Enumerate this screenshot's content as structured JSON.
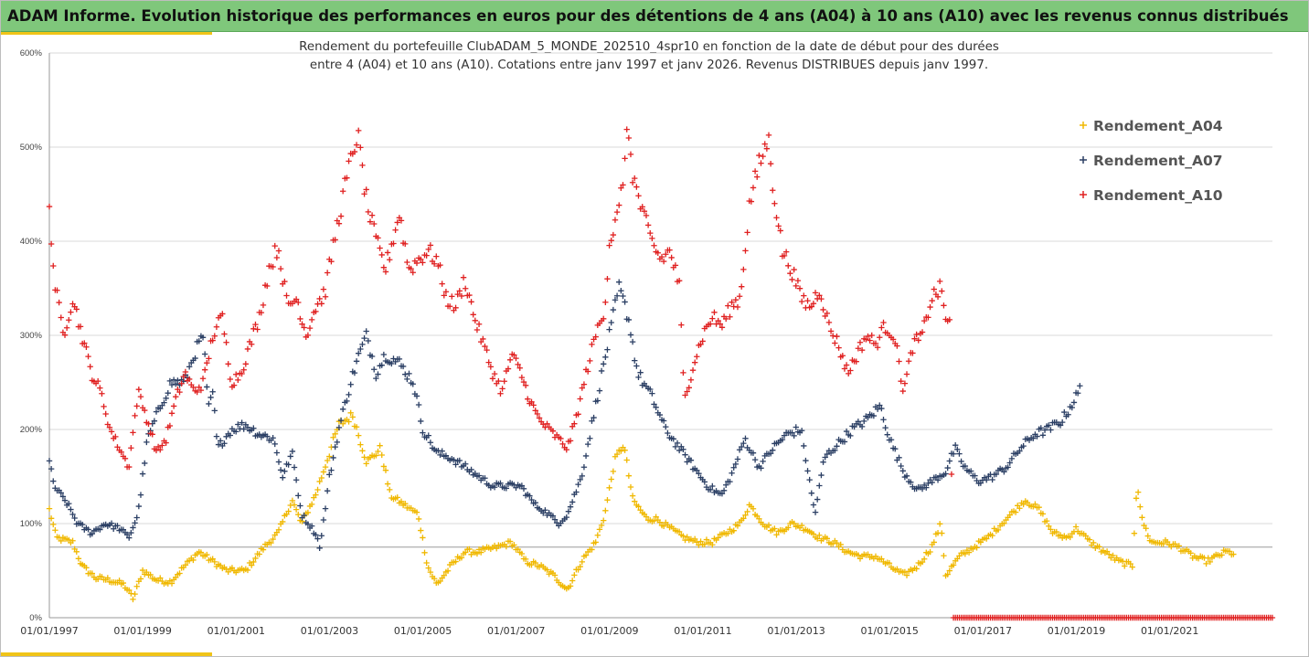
{
  "header": {
    "title": "ADAM Informe. Evolution historique des performances en euros pour des détentions de 4 ans (A04) à 10 ans (A10) avec les revenus connus distribués",
    "accent": "#f0c418"
  },
  "chart_data": {
    "type": "scatter",
    "title": "",
    "subtitle_lines": [
      "Rendement du portefeuille ClubADAM_5_MONDE_202510_4spr10  en fonction de la date de début pour des durées",
      "entre 4 (A04) et 10 ans (A10). Cotations entre janv 1997 et janv 2026. Revenus DISTRIBUES depuis janv 1997."
    ],
    "marker": "+",
    "xlabel": "",
    "ylabel": "",
    "xlim": [
      1997.0,
      2023.2
    ],
    "ylim": [
      0,
      600
    ],
    "y_ticks": [
      0,
      100,
      200,
      300,
      400,
      500,
      600
    ],
    "y_tick_labels": [
      "0%",
      "100%",
      "200%",
      "300%",
      "400%",
      "500%",
      "600%"
    ],
    "x_ticks": [
      1997,
      1999,
      2001,
      2003,
      2005,
      2007,
      2009,
      2011,
      2013,
      2015,
      2017,
      2019,
      2021
    ],
    "x_tick_labels": [
      "01/01/1997",
      "01/01/1999",
      "01/01/2001",
      "01/01/2003",
      "01/01/2005",
      "01/01/2007",
      "01/01/2009",
      "01/01/2011",
      "01/01/2013",
      "01/01/2015",
      "01/01/2017",
      "01/01/2019",
      "01/01/2021"
    ],
    "reference_line": 75,
    "grid": "horizontal",
    "legend_position": "right",
    "series": [
      {
        "name": "Rendement_A04",
        "color": "#f0b800",
        "x_step": 0.0833,
        "points": [
          [
            1997.0,
            115
          ],
          [
            1997.15,
            85
          ],
          [
            1997.5,
            80
          ],
          [
            1997.7,
            55
          ],
          [
            1998.0,
            42
          ],
          [
            1998.3,
            40
          ],
          [
            1998.6,
            35
          ],
          [
            1998.8,
            20
          ],
          [
            1999.0,
            50
          ],
          [
            1999.3,
            40
          ],
          [
            1999.6,
            38
          ],
          [
            1999.9,
            55
          ],
          [
            2000.2,
            70
          ],
          [
            2000.5,
            60
          ],
          [
            2000.8,
            50
          ],
          [
            2001.2,
            50
          ],
          [
            2001.6,
            75
          ],
          [
            2001.9,
            90
          ],
          [
            2002.2,
            125
          ],
          [
            2002.4,
            100
          ],
          [
            2002.7,
            130
          ],
          [
            2003.0,
            175
          ],
          [
            2003.2,
            205
          ],
          [
            2003.5,
            215
          ],
          [
            2003.8,
            165
          ],
          [
            2004.1,
            180
          ],
          [
            2004.3,
            130
          ],
          [
            2004.6,
            120
          ],
          [
            2004.9,
            110
          ],
          [
            2005.1,
            55
          ],
          [
            2005.3,
            35
          ],
          [
            2005.6,
            55
          ],
          [
            2005.9,
            70
          ],
          [
            2006.2,
            70
          ],
          [
            2006.6,
            75
          ],
          [
            2006.9,
            80
          ],
          [
            2007.2,
            60
          ],
          [
            2007.5,
            55
          ],
          [
            2007.8,
            45
          ],
          [
            2008.1,
            30
          ],
          [
            2008.4,
            60
          ],
          [
            2008.7,
            80
          ],
          [
            2008.9,
            110
          ],
          [
            2009.1,
            165
          ],
          [
            2009.3,
            185
          ],
          [
            2009.5,
            125
          ],
          [
            2009.8,
            105
          ],
          [
            2010.0,
            105
          ],
          [
            2010.3,
            95
          ],
          [
            2010.6,
            85
          ],
          [
            2010.9,
            80
          ],
          [
            2011.2,
            80
          ],
          [
            2011.5,
            90
          ],
          [
            2011.8,
            100
          ],
          [
            2012.0,
            120
          ],
          [
            2012.3,
            100
          ],
          [
            2012.6,
            90
          ],
          [
            2012.9,
            100
          ],
          [
            2013.2,
            95
          ],
          [
            2013.5,
            85
          ],
          [
            2013.8,
            80
          ],
          [
            2014.1,
            70
          ],
          [
            2014.4,
            65
          ],
          [
            2014.7,
            65
          ],
          [
            2015.0,
            55
          ],
          [
            2015.3,
            45
          ],
          [
            2015.6,
            55
          ],
          [
            2015.9,
            75
          ],
          [
            2016.1,
            100
          ],
          [
            2016.2,
            45
          ],
          [
            2016.5,
            65
          ],
          [
            2016.8,
            75
          ],
          [
            2017.1,
            85
          ],
          [
            2017.4,
            100
          ],
          [
            2017.7,
            115
          ],
          [
            2017.9,
            125
          ],
          [
            2018.2,
            115
          ],
          [
            2018.5,
            90
          ],
          [
            2018.8,
            85
          ],
          [
            2019.0,
            95
          ],
          [
            2019.3,
            80
          ],
          [
            2019.6,
            70
          ],
          [
            2019.9,
            60
          ],
          [
            2020.2,
            55
          ],
          [
            2020.3,
            145
          ],
          [
            2020.4,
            105
          ],
          [
            2020.6,
            80
          ],
          [
            2020.9,
            80
          ],
          [
            2021.2,
            75
          ],
          [
            2021.5,
            65
          ],
          [
            2021.8,
            60
          ],
          [
            2022.2,
            70
          ],
          [
            2022.4,
            68
          ]
        ]
      },
      {
        "name": "Rendement_A07",
        "color": "#2b3f64",
        "x_step": 0.0833,
        "points": [
          [
            1997.0,
            165
          ],
          [
            1997.1,
            140
          ],
          [
            1997.4,
            120
          ],
          [
            1997.6,
            100
          ],
          [
            1997.9,
            90
          ],
          [
            1998.2,
            100
          ],
          [
            1998.5,
            95
          ],
          [
            1998.7,
            85
          ],
          [
            1998.9,
            110
          ],
          [
            1999.1,
            190
          ],
          [
            1999.3,
            215
          ],
          [
            1999.6,
            250
          ],
          [
            1999.9,
            250
          ],
          [
            2000.1,
            280
          ],
          [
            2000.3,
            300
          ],
          [
            2000.4,
            220
          ],
          [
            2000.5,
            240
          ],
          [
            2000.6,
            180
          ],
          [
            2000.9,
            200
          ],
          [
            2001.2,
            205
          ],
          [
            2001.5,
            195
          ],
          [
            2001.8,
            190
          ],
          [
            2002.0,
            150
          ],
          [
            2002.2,
            175
          ],
          [
            2002.4,
            110
          ],
          [
            2002.7,
            90
          ],
          [
            2002.8,
            75
          ],
          [
            2003.0,
            150
          ],
          [
            2003.2,
            200
          ],
          [
            2003.4,
            240
          ],
          [
            2003.6,
            275
          ],
          [
            2003.8,
            300
          ],
          [
            2004.0,
            260
          ],
          [
            2004.2,
            280
          ],
          [
            2004.5,
            270
          ],
          [
            2004.8,
            250
          ],
          [
            2005.0,
            200
          ],
          [
            2005.3,
            175
          ],
          [
            2005.6,
            170
          ],
          [
            2005.9,
            160
          ],
          [
            2006.2,
            150
          ],
          [
            2006.5,
            140
          ],
          [
            2006.8,
            140
          ],
          [
            2007.1,
            140
          ],
          [
            2007.4,
            120
          ],
          [
            2007.7,
            110
          ],
          [
            2007.9,
            100
          ],
          [
            2008.1,
            110
          ],
          [
            2008.4,
            150
          ],
          [
            2008.6,
            200
          ],
          [
            2008.8,
            250
          ],
          [
            2009.0,
            300
          ],
          [
            2009.2,
            350
          ],
          [
            2009.4,
            320
          ],
          [
            2009.6,
            260
          ],
          [
            2009.9,
            235
          ],
          [
            2010.2,
            200
          ],
          [
            2010.5,
            180
          ],
          [
            2010.8,
            160
          ],
          [
            2011.1,
            140
          ],
          [
            2011.4,
            130
          ],
          [
            2011.6,
            150
          ],
          [
            2011.9,
            190
          ],
          [
            2012.2,
            160
          ],
          [
            2012.5,
            180
          ],
          [
            2012.8,
            195
          ],
          [
            2013.1,
            200
          ],
          [
            2013.4,
            110
          ],
          [
            2013.6,
            170
          ],
          [
            2013.9,
            185
          ],
          [
            2014.2,
            200
          ],
          [
            2014.5,
            210
          ],
          [
            2014.8,
            225
          ],
          [
            2015.0,
            190
          ],
          [
            2015.3,
            155
          ],
          [
            2015.6,
            135
          ],
          [
            2015.9,
            145
          ],
          [
            2016.2,
            155
          ],
          [
            2016.4,
            180
          ],
          [
            2016.6,
            160
          ],
          [
            2016.9,
            145
          ],
          [
            2017.2,
            150
          ],
          [
            2017.5,
            160
          ],
          [
            2017.8,
            180
          ],
          [
            2018.1,
            195
          ],
          [
            2018.4,
            200
          ],
          [
            2018.7,
            210
          ],
          [
            2019.0,
            235
          ],
          [
            2019.1,
            245
          ]
        ]
      },
      {
        "name": "Rendement_A10",
        "color": "#e02020",
        "x_step": 0.0833,
        "points": [
          [
            1997.0,
            440
          ],
          [
            1997.1,
            360
          ],
          [
            1997.3,
            300
          ],
          [
            1997.5,
            340
          ],
          [
            1997.7,
            300
          ],
          [
            1997.9,
            260
          ],
          [
            1998.1,
            240
          ],
          [
            1998.3,
            200
          ],
          [
            1998.5,
            180
          ],
          [
            1998.7,
            160
          ],
          [
            1998.9,
            240
          ],
          [
            1999.1,
            210
          ],
          [
            1999.3,
            175
          ],
          [
            1999.5,
            190
          ],
          [
            1999.7,
            230
          ],
          [
            1999.9,
            260
          ],
          [
            2000.1,
            240
          ],
          [
            2000.3,
            250
          ],
          [
            2000.5,
            300
          ],
          [
            2000.7,
            320
          ],
          [
            2000.9,
            250
          ],
          [
            2001.1,
            260
          ],
          [
            2001.3,
            290
          ],
          [
            2001.5,
            320
          ],
          [
            2001.7,
            370
          ],
          [
            2001.9,
            395
          ],
          [
            2002.1,
            330
          ],
          [
            2002.3,
            340
          ],
          [
            2002.5,
            300
          ],
          [
            2002.7,
            330
          ],
          [
            2002.9,
            345
          ],
          [
            2003.1,
            400
          ],
          [
            2003.3,
            450
          ],
          [
            2003.5,
            495
          ],
          [
            2003.6,
            515
          ],
          [
            2003.8,
            440
          ],
          [
            2004.0,
            400
          ],
          [
            2004.2,
            370
          ],
          [
            2004.5,
            430
          ],
          [
            2004.7,
            370
          ],
          [
            2004.9,
            380
          ],
          [
            2005.1,
            390
          ],
          [
            2005.3,
            380
          ],
          [
            2005.5,
            340
          ],
          [
            2005.7,
            330
          ],
          [
            2005.9,
            360
          ],
          [
            2006.1,
            320
          ],
          [
            2006.3,
            290
          ],
          [
            2006.5,
            260
          ],
          [
            2006.7,
            240
          ],
          [
            2006.9,
            280
          ],
          [
            2007.1,
            260
          ],
          [
            2007.3,
            230
          ],
          [
            2007.5,
            210
          ],
          [
            2007.7,
            200
          ],
          [
            2007.9,
            190
          ],
          [
            2008.1,
            180
          ],
          [
            2008.3,
            215
          ],
          [
            2008.5,
            260
          ],
          [
            2008.7,
            300
          ],
          [
            2008.9,
            330
          ],
          [
            2009.0,
            400
          ],
          [
            2009.2,
            430
          ],
          [
            2009.4,
            520
          ],
          [
            2009.5,
            470
          ],
          [
            2009.7,
            430
          ],
          [
            2009.9,
            400
          ],
          [
            2010.1,
            380
          ],
          [
            2010.3,
            390
          ],
          [
            2010.5,
            350
          ],
          [
            2010.6,
            230
          ],
          [
            2010.8,
            270
          ],
          [
            2011.0,
            300
          ],
          [
            2011.2,
            320
          ],
          [
            2011.4,
            310
          ],
          [
            2011.6,
            330
          ],
          [
            2011.8,
            340
          ],
          [
            2012.0,
            440
          ],
          [
            2012.2,
            480
          ],
          [
            2012.4,
            510
          ],
          [
            2012.5,
            460
          ],
          [
            2012.7,
            390
          ],
          [
            2012.9,
            370
          ],
          [
            2013.1,
            340
          ],
          [
            2013.3,
            330
          ],
          [
            2013.5,
            350
          ],
          [
            2013.7,
            310
          ],
          [
            2013.9,
            290
          ],
          [
            2014.1,
            260
          ],
          [
            2014.3,
            280
          ],
          [
            2014.5,
            300
          ],
          [
            2014.7,
            290
          ],
          [
            2014.9,
            310
          ],
          [
            2015.1,
            300
          ],
          [
            2015.3,
            240
          ],
          [
            2015.5,
            290
          ],
          [
            2015.7,
            300
          ],
          [
            2015.9,
            340
          ],
          [
            2016.1,
            350
          ],
          [
            2016.2,
            320
          ],
          [
            2016.3,
            310
          ],
          [
            2016.35,
            0
          ],
          [
            2023.2,
            0
          ]
        ]
      }
    ]
  }
}
